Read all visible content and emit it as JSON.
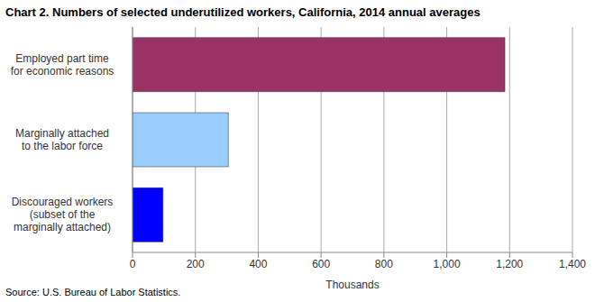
{
  "chart_data": {
    "type": "bar",
    "orientation": "horizontal",
    "title": "Chart 2. Numbers of selected underutilized workers, California, 2014 annual averages",
    "x_label": "Thousands",
    "source": "Source: U.S. Bureau of Labor Statistics.",
    "categories": [
      "Employed part time\nfor economic reasons",
      "Marginally attached\nto the labor force",
      "Discouraged workers\n(subset of the\nmarginally attached)"
    ],
    "values": [
      1185,
      305,
      97
    ],
    "colors": [
      "#993366",
      "#99ccff",
      "#0000ff"
    ],
    "xlim": [
      0,
      1400
    ],
    "xticks": [
      0,
      200,
      400,
      600,
      800,
      {
        "value": 1000,
        "label": "1,000"
      },
      {
        "value": 1200,
        "label": "1,200"
      },
      {
        "value": 1400,
        "label": "1,400"
      }
    ],
    "grid": true
  }
}
